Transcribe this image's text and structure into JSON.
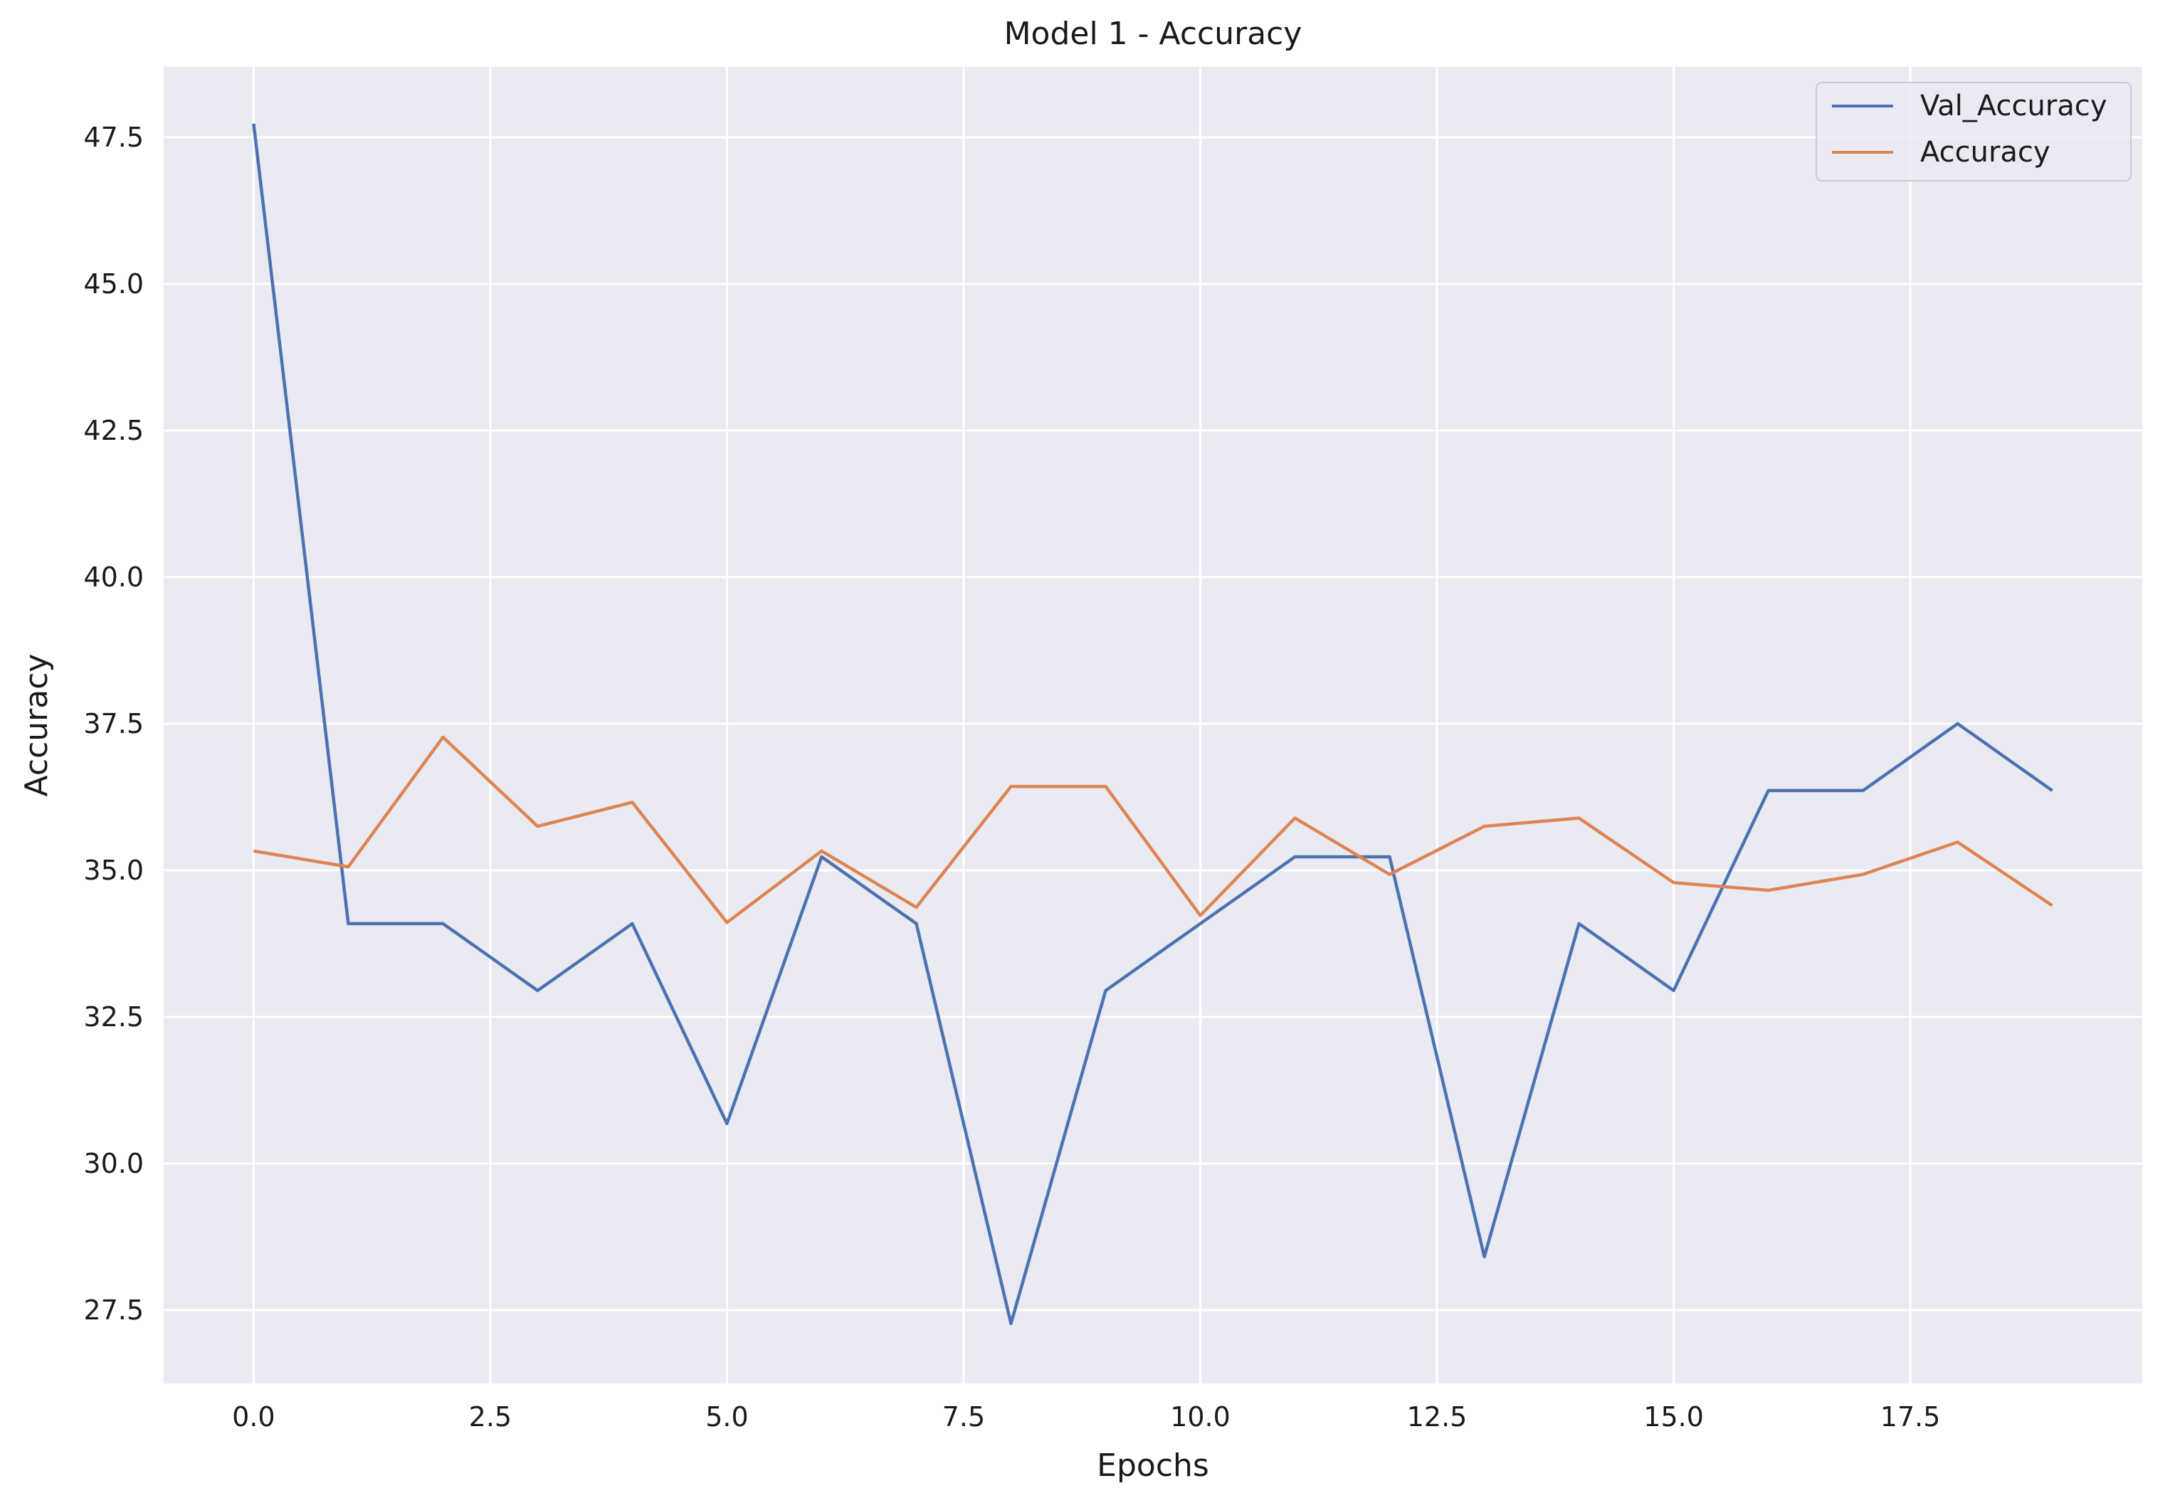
{
  "chart_data": {
    "type": "line",
    "title": "Model 1 - Accuracy",
    "xlabel": "Epochs",
    "ylabel": "Accuracy",
    "x": [
      0,
      1,
      2,
      3,
      4,
      5,
      6,
      7,
      8,
      9,
      10,
      11,
      12,
      13,
      14,
      15,
      16,
      17,
      18,
      19
    ],
    "xlim": [
      -0.95,
      19.95
    ],
    "ylim": [
      26.25,
      48.7
    ],
    "xticks": [
      0.0,
      2.5,
      5.0,
      7.5,
      10.0,
      12.5,
      15.0,
      17.5
    ],
    "xtick_labels": [
      "0.0",
      "2.5",
      "5.0",
      "7.5",
      "10.0",
      "12.5",
      "15.0",
      "17.5"
    ],
    "yticks": [
      27.5,
      30.0,
      32.5,
      35.0,
      37.5,
      40.0,
      42.5,
      45.0,
      47.5
    ],
    "ytick_labels": [
      "27.5",
      "30.0",
      "32.5",
      "35.0",
      "37.5",
      "40.0",
      "42.5",
      "45.0",
      "47.5"
    ],
    "grid": true,
    "legend_position": "top-right",
    "series": [
      {
        "name": "Val_Accuracy",
        "color": "#4c72b0",
        "values": [
          47.73,
          34.09,
          34.09,
          32.95,
          34.09,
          30.68,
          35.23,
          34.09,
          27.27,
          32.95,
          34.09,
          35.23,
          35.23,
          28.41,
          34.09,
          32.95,
          36.36,
          36.36,
          37.5,
          36.36
        ]
      },
      {
        "name": "Accuracy",
        "color": "#dd8452",
        "values": [
          35.33,
          35.06,
          37.27,
          35.75,
          36.16,
          34.11,
          35.33,
          34.37,
          36.43,
          36.43,
          34.23,
          35.89,
          34.93,
          35.75,
          35.89,
          34.79,
          34.66,
          34.93,
          35.48,
          34.4
        ]
      }
    ]
  },
  "colors": {
    "plot_background": "#eaeaf2",
    "grid": "#ffffff"
  }
}
